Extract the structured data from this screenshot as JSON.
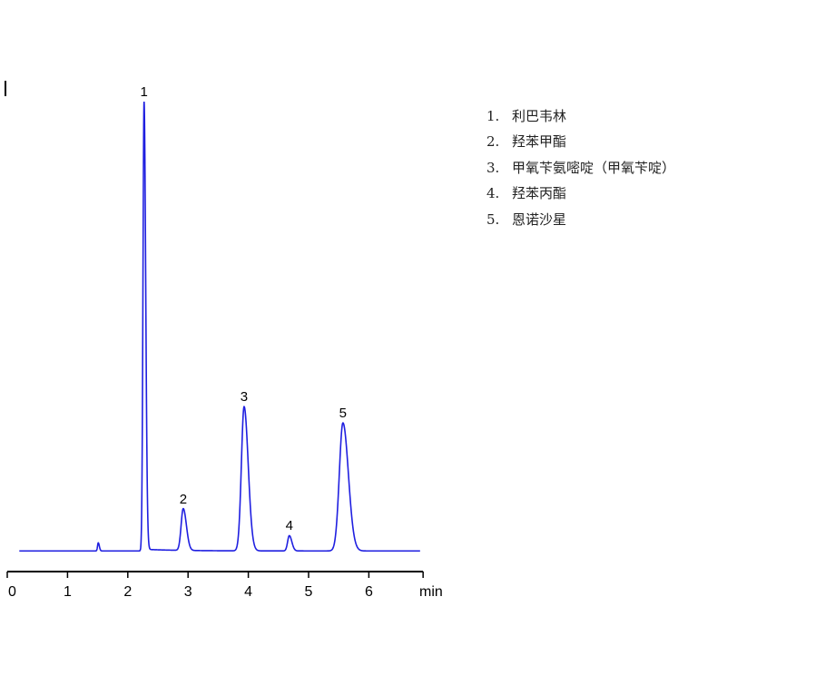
{
  "chart_data": {
    "type": "line",
    "title": "",
    "xlabel": "min",
    "ylabel": "",
    "xlim": [
      0,
      6.9
    ],
    "ylim": [
      0,
      104.6
    ],
    "x_ticks": [
      0,
      1,
      2,
      3,
      4,
      5,
      6
    ],
    "x_tick_labels": [
      "0",
      "1",
      "2",
      "3",
      "4",
      "5",
      "6"
    ],
    "grid": false,
    "line_color": "#1f1fe0",
    "peaks": [
      {
        "label": "",
        "rt": 1.51,
        "height": 1.8,
        "width": 0.012
      },
      {
        "label": "1",
        "rt": 2.27,
        "height": 100,
        "width": 0.018
      },
      {
        "label": "2",
        "rt": 2.92,
        "height": 9.3,
        "width": 0.035
      },
      {
        "label": "3",
        "rt": 3.93,
        "height": 32.1,
        "width": 0.045
      },
      {
        "label": "4",
        "rt": 4.68,
        "height": 3.4,
        "width": 0.028
      },
      {
        "label": "5",
        "rt": 5.57,
        "height": 28.5,
        "width": 0.06
      }
    ],
    "legend": [
      {
        "num": "1.",
        "name": "利巴韦林"
      },
      {
        "num": "2.",
        "name": "羟苯甲酯"
      },
      {
        "num": "3.",
        "name": "甲氧苄氨嘧啶（甲氧苄啶）"
      },
      {
        "num": "4.",
        "name": "羟苯丙酯"
      },
      {
        "num": "5.",
        "name": "恩诺沙星"
      }
    ],
    "legend_placement": "top-right"
  }
}
